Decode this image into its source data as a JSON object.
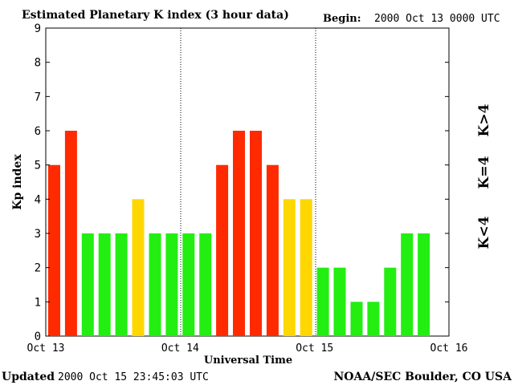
{
  "header": {
    "title": "Estimated Planetary K index (3 hour data)",
    "begin_label": "Begin:",
    "begin_value": "2000 Oct 13 0000 UTC"
  },
  "footer": {
    "updated_label": "Updated",
    "updated_value": "2000 Oct 15 23:45:03 UTC",
    "source": "NOAA/SEC Boulder, CO USA"
  },
  "legend": {
    "low": "K<4",
    "mid": "K=4",
    "high": "K>4"
  },
  "colors": {
    "low": "#22ee11",
    "mid": "#ffd700",
    "high": "#ff2a00"
  },
  "chart_data": {
    "type": "bar",
    "title": "Estimated Planetary K index (3 hour data)",
    "xlabel": "Universal Time",
    "ylabel": "Kp index",
    "ylim": [
      0,
      9
    ],
    "yticks": [
      "0",
      "1",
      "2",
      "3",
      "4",
      "5",
      "6",
      "7",
      "8",
      "9"
    ],
    "xticks": [
      "Oct 13",
      "Oct 14",
      "Oct 15",
      "Oct 16"
    ],
    "grid": false,
    "day_separators": "dotted vertical lines at Oct 14 and Oct 15",
    "values": [
      5,
      6,
      3,
      3,
      3,
      4,
      3,
      3,
      3,
      3,
      5,
      6,
      6,
      5,
      4,
      4,
      2,
      2,
      1,
      1,
      2,
      3,
      3
    ]
  }
}
